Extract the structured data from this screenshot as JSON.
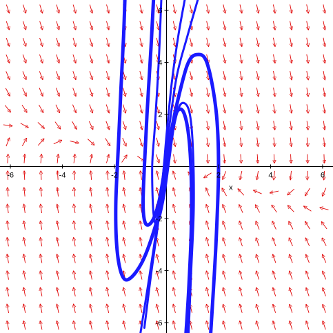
{
  "chart_data": {
    "type": "direction-field",
    "xlabel": "x",
    "ylabel": "",
    "xlim": [
      -6.4,
      6.4
    ],
    "ylim": [
      -6.4,
      6.4
    ],
    "x_ticks": [
      -6,
      -4,
      -2,
      2,
      4,
      6
    ],
    "x_tick_labels": [
      "-6",
      "-4",
      "-2",
      "2",
      "4",
      "6"
    ],
    "y_ticks": [
      -6,
      -4,
      -2,
      2,
      4,
      6
    ],
    "y_tick_labels": [
      "-6",
      "-4",
      "-2",
      "2",
      "4",
      "6"
    ],
    "field_color": "#e00000",
    "curve_color": "#1a1aff",
    "trajectories": [
      [
        [
          -1.6,
          6.4
        ],
        [
          -1.65,
          5
        ],
        [
          -1.75,
          3
        ],
        [
          -1.85,
          0.8
        ],
        [
          -1.95,
          -1.5
        ],
        [
          -1.9,
          -3.2
        ],
        [
          -1.7,
          -4.2
        ],
        [
          -1.4,
          -4.3
        ],
        [
          -0.9,
          -3.6
        ],
        [
          -0.4,
          -2.2
        ],
        [
          -0.1,
          -0.9
        ],
        [
          0.05,
          0.2
        ],
        [
          0.2,
          1.3
        ],
        [
          0.4,
          2.1
        ],
        [
          0.65,
          2.1
        ],
        [
          0.85,
          1.2
        ],
        [
          0.95,
          -0.4
        ],
        [
          0.95,
          -2.5
        ],
        [
          0.85,
          -4.8
        ],
        [
          0.75,
          -6.4
        ]
      ],
      [
        [
          -0.5,
          6.4
        ],
        [
          -0.6,
          4.5
        ],
        [
          -0.75,
          2
        ],
        [
          -0.85,
          0
        ],
        [
          -0.9,
          -1.5
        ],
        [
          -0.8,
          -2.2
        ],
        [
          -0.55,
          -2.1
        ],
        [
          -0.3,
          -1.4
        ],
        [
          -0.1,
          -0.3
        ],
        [
          0.1,
          0.9
        ],
        [
          0.4,
          2.4
        ],
        [
          0.8,
          3.9
        ],
        [
          1.15,
          4.3
        ],
        [
          1.55,
          4.0
        ],
        [
          1.9,
          2.2
        ],
        [
          2.0,
          0
        ],
        [
          1.9,
          -3
        ],
        [
          1.7,
          -6.4
        ]
      ],
      [
        [
          0.7,
          6.4
        ],
        [
          0.45,
          5
        ],
        [
          0.2,
          3.2
        ],
        [
          0.0,
          1.2
        ],
        [
          -0.15,
          -0.5
        ],
        [
          -0.4,
          -2.5
        ],
        [
          -0.7,
          -4.5
        ],
        [
          -1.0,
          -6.4
        ]
      ],
      [
        [
          1.2,
          6.4
        ],
        [
          0.8,
          5
        ],
        [
          0.4,
          3.5
        ],
        [
          0.1,
          1.5
        ],
        [
          -0.1,
          0
        ],
        [
          -0.3,
          -2
        ],
        [
          -0.6,
          -4.2
        ],
        [
          -0.85,
          -6.2
        ]
      ],
      [
        [
          -0.2,
          6.4
        ],
        [
          -0.3,
          4
        ],
        [
          -0.45,
          1.5
        ],
        [
          -0.55,
          0
        ],
        [
          -0.5,
          -1.8
        ],
        [
          -0.35,
          -2.2
        ],
        [
          -0.1,
          -1.2
        ],
        [
          0.1,
          0.2
        ],
        [
          0.3,
          1.6
        ],
        [
          0.55,
          2.4
        ],
        [
          0.85,
          2.2
        ],
        [
          1.0,
          1.0
        ],
        [
          1.05,
          -1.5
        ],
        [
          0.95,
          -4
        ],
        [
          0.85,
          -6.4
        ]
      ]
    ]
  }
}
